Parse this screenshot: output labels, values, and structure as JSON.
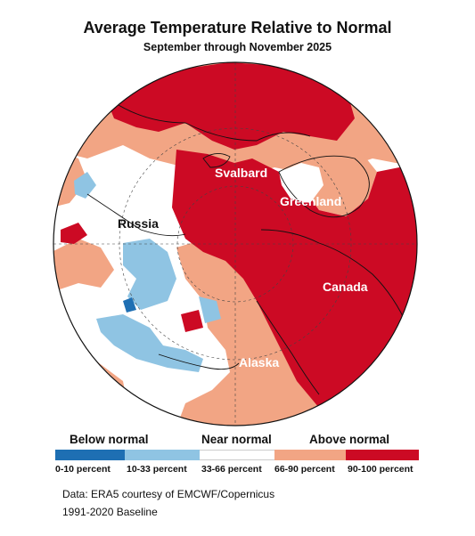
{
  "title": "Average Temperature Relative to Normal",
  "subtitle": "September through November 2025",
  "map": {
    "regions": [
      "Svalbard",
      "Greenland",
      "Russia",
      "Canada",
      "Alaska"
    ]
  },
  "legend": {
    "groups": [
      "Below normal",
      "Near normal",
      "Above normal"
    ],
    "categories": [
      {
        "label": "0-10 percent",
        "color": "#1e6fb3"
      },
      {
        "label": "10-33 percent",
        "color": "#8fc4e3"
      },
      {
        "label": "33-66 percent",
        "color": "#ffffff"
      },
      {
        "label": "66-90 percent",
        "color": "#f2a584"
      },
      {
        "label": "90-100 percent",
        "color": "#cc0a24"
      }
    ]
  },
  "credit": {
    "line1": "Data: ERA5 courtesy of EMCWF/Copernicus",
    "line2": "1991-2020 Baseline"
  }
}
